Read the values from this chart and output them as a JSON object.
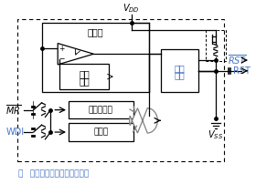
{
  "bg_color": "#ffffff",
  "box_color": "#000000",
  "text_color": "#000000",
  "blue_color": "#4472c4",
  "gray_color": "#808080",
  "fig_width": 2.8,
  "fig_height": 2.02,
  "dpi": 100,
  "note_text": "  提供的功能取决于器件型号",
  "note_prefix": "注",
  "comparator": "比较器",
  "voltage_ref_1": "电压",
  "voltage_ref_2": "基准",
  "noise_filter": "噪声滤波器",
  "watchdog": "看门狗",
  "output_driver_1": "输出",
  "output_driver_2": "驱动"
}
